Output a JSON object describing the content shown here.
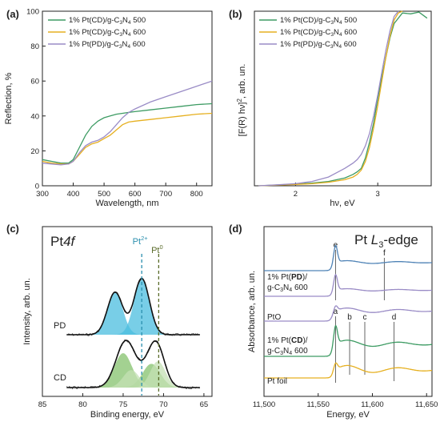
{
  "colors": {
    "green": "#3d9b63",
    "orange": "#e6b020",
    "purple": "#9a8cc6",
    "blue": "#4f83b6",
    "cyan": "#3ab7d8",
    "cyan_fill": "#4bbddf",
    "cyan_fill_light": "#a8dcec",
    "lightgreen_fill": "#84c26c",
    "lightgreen_fill_light": "#c4e0b4",
    "pt2_line": "#2b8fae",
    "pt0_line": "#5a6b2a"
  },
  "chart_data": [
    {
      "panel": "(a)",
      "type": "line",
      "xlabel": "Wavelength, nm",
      "ylabel": "Reflection, %",
      "xlim": [
        300,
        850
      ],
      "ylim": [
        0,
        100
      ],
      "xticks": [
        "300",
        "400",
        "500",
        "600",
        "700",
        "800"
      ],
      "yticks": [
        "0",
        "20",
        "40",
        "60",
        "80",
        "100"
      ],
      "legend_position": "top-left",
      "series": [
        {
          "name_parts": [
            "1% Pt(CD)/g-C",
            "3",
            "N",
            "4",
            " 500"
          ],
          "color": "green",
          "x": [
            300,
            330,
            360,
            385,
            400,
            420,
            440,
            460,
            480,
            500,
            520,
            540,
            560,
            580,
            600,
            650,
            700,
            750,
            800,
            850
          ],
          "y": [
            15,
            14,
            13,
            13,
            15,
            22,
            29,
            34,
            37,
            39,
            40,
            41,
            41.5,
            42,
            42.5,
            43.5,
            44.5,
            45.5,
            46.5,
            47
          ]
        },
        {
          "name_parts": [
            "1% Pt(CD)/g-C",
            "3",
            "N",
            "4",
            " 600"
          ],
          "color": "orange",
          "x": [
            300,
            330,
            360,
            385,
            400,
            420,
            440,
            460,
            480,
            500,
            520,
            540,
            560,
            580,
            600,
            650,
            700,
            750,
            800,
            850
          ],
          "y": [
            14,
            13,
            12.5,
            12.5,
            14,
            18,
            22,
            24,
            25,
            27,
            29,
            32,
            35,
            36.5,
            37,
            38,
            39,
            40,
            41,
            41.5
          ]
        },
        {
          "name_parts": [
            "1% Pt(PD)/g-C",
            "3",
            "N",
            "4",
            " 600"
          ],
          "color": "purple",
          "x": [
            300,
            330,
            360,
            385,
            400,
            420,
            440,
            460,
            480,
            500,
            520,
            540,
            560,
            580,
            600,
            650,
            700,
            750,
            800,
            850
          ],
          "y": [
            13,
            12.5,
            12,
            12.5,
            14,
            19,
            23,
            25,
            26,
            28,
            31,
            35,
            39,
            42,
            44,
            48,
            51,
            54,
            57,
            60
          ]
        }
      ]
    },
    {
      "panel": "(b)",
      "type": "line",
      "xlabel": "hν, eV",
      "ylabel_parts": [
        "[F(R) hν]",
        "2",
        ", arb. un."
      ],
      "xlim": [
        1.5,
        3.65
      ],
      "ylim": [
        0,
        1
      ],
      "xticks": [
        "2",
        "3"
      ],
      "legend_position": "top-left",
      "series": [
        {
          "name_parts": [
            "1% Pt(CD)/g-C",
            "3",
            "N",
            "4",
            " 500"
          ],
          "color": "green",
          "x": [
            1.55,
            1.8,
            2.0,
            2.2,
            2.4,
            2.6,
            2.7,
            2.75,
            2.8,
            2.85,
            2.9,
            2.95,
            3.0,
            3.05,
            3.1,
            3.15,
            3.2,
            3.3,
            3.4,
            3.5,
            3.6
          ],
          "y": [
            0.0,
            0.005,
            0.01,
            0.015,
            0.025,
            0.045,
            0.065,
            0.08,
            0.1,
            0.16,
            0.25,
            0.36,
            0.5,
            0.62,
            0.74,
            0.85,
            0.93,
            0.99,
            0.985,
            0.995,
            0.96
          ]
        },
        {
          "name_parts": [
            "1% Pt(CD)/g-C",
            "3",
            "N",
            "4",
            " 600"
          ],
          "color": "orange",
          "x": [
            1.55,
            1.8,
            2.0,
            2.2,
            2.4,
            2.6,
            2.7,
            2.75,
            2.8,
            2.85,
            2.9,
            2.95,
            3.0,
            3.05,
            3.1,
            3.15,
            3.2,
            3.25,
            3.3
          ],
          "y": [
            0.0,
            0.004,
            0.008,
            0.012,
            0.02,
            0.035,
            0.05,
            0.065,
            0.09,
            0.14,
            0.22,
            0.33,
            0.46,
            0.6,
            0.74,
            0.86,
            0.95,
            0.99,
            1.0
          ]
        },
        {
          "name_parts": [
            "1% Pt(PD)/g-C",
            "3",
            "N",
            "4",
            " 600"
          ],
          "color": "purple",
          "x": [
            1.55,
            1.8,
            2.0,
            2.2,
            2.4,
            2.5,
            2.6,
            2.7,
            2.75,
            2.8,
            2.85,
            2.9,
            2.95,
            3.0,
            3.05,
            3.1,
            3.15,
            3.2,
            3.25
          ],
          "y": [
            0.0,
            0.006,
            0.012,
            0.025,
            0.05,
            0.075,
            0.1,
            0.13,
            0.15,
            0.18,
            0.23,
            0.3,
            0.4,
            0.52,
            0.65,
            0.78,
            0.89,
            0.97,
            1.0
          ]
        }
      ]
    },
    {
      "panel": "(c)",
      "type": "line",
      "title_parts": [
        "Pt",
        "4f"
      ],
      "xlabel": "Binding energy, eV",
      "ylabel": "Intensity, arb. un.",
      "xlim": [
        85,
        64
      ],
      "xticks": [
        "85",
        "80",
        "75",
        "70",
        "65"
      ],
      "reference_lines": [
        {
          "label": "Pt",
          "superscript": "2+",
          "x": 72.7,
          "color": "pt2_line"
        },
        {
          "label": "Pt",
          "superscript": "0",
          "x": 70.6,
          "color": "pt0_line"
        }
      ],
      "spectra": [
        {
          "label": "PD",
          "fill": "cyan_fill",
          "fill_light": "cyan_fill_light",
          "peaks": [
            {
              "center": 76.0,
              "height": 0.68,
              "width": 0.95
            },
            {
              "center": 72.7,
              "height": 0.9,
              "width": 0.95
            }
          ]
        },
        {
          "label": "CD",
          "fill": "lightgreen_fill",
          "fill_light": "lightgreen_fill_light",
          "peaks": [
            {
              "center": 75.0,
              "height": 0.55,
              "width": 1.1
            },
            {
              "center": 71.5,
              "height": 0.38,
              "width": 1.1
            },
            {
              "center": 74.0,
              "height": 0.28,
              "width": 1.0
            },
            {
              "center": 70.7,
              "height": 0.42,
              "width": 0.95
            }
          ]
        }
      ]
    },
    {
      "panel": "(d)",
      "type": "line",
      "title_parts": [
        "Pt ",
        "L",
        "3",
        "-edge"
      ],
      "xlabel": "Energy, eV",
      "ylabel": "Absorbance, arb. un.",
      "xlim": [
        11500,
        11655
      ],
      "xticks": [
        "11,500",
        "11,550",
        "11,600",
        "11,650"
      ],
      "markers": [
        {
          "label": "e",
          "x": 11566
        },
        {
          "label": "f",
          "x": 11611
        },
        {
          "label": "a",
          "x": 11566
        },
        {
          "label": "b",
          "x": 11579
        },
        {
          "label": "c",
          "x": 11593
        },
        {
          "label": "d",
          "x": 11620
        }
      ],
      "series": [
        {
          "name_parts": [
            "1% Pt(",
            "PD",
            ")/",
            "g-C",
            "3",
            "N",
            "4",
            " 600"
          ],
          "color": "blue"
        },
        {
          "name_parts": [
            "1% Pt(",
            "PD",
            ")/",
            "g-C",
            "3",
            "N",
            "4",
            " 600"
          ],
          "color": "purple"
        },
        {
          "name_parts": [
            "PtO"
          ],
          "color": "purple"
        },
        {
          "name_parts": [
            "1% Pt(",
            "CD",
            ")/",
            "g-C",
            "3",
            "N",
            "4",
            " 600"
          ],
          "color": "green"
        },
        {
          "name_parts": [
            "Pt foil"
          ],
          "color": "orange"
        }
      ]
    }
  ],
  "panel_labels": [
    "(a)",
    "(b)",
    "(c)",
    "(d)"
  ],
  "legend_ab": [
    [
      "1% Pt(CD)/g-C",
      "3",
      "N",
      "4",
      " 500"
    ],
    [
      "1% Pt(CD)/g-C",
      "3",
      "N",
      "4",
      " 600"
    ],
    [
      "1% Pt(PD)/g-C",
      "3",
      "N",
      "4",
      " 600"
    ]
  ],
  "labels_c": {
    "pd": "PD",
    "cd": "CD",
    "pt2": "Pt",
    "pt2_sup": "2+",
    "pt0": "Pt",
    "pt0_sup": "0"
  },
  "labels_d": {
    "pd_line1_a": "1% Pt(",
    "pd_line1_b": "PD",
    "pd_line1_c": ")/",
    "pd_line2_a": "g-C",
    "pd_line2_b": "3",
    "pd_line2_c": "N",
    "pd_line2_d": "4",
    "pd_line2_e": " 600",
    "pto": "PtO",
    "cd_line1_a": "1% Pt(",
    "cd_line1_b": "CD",
    "cd_line1_c": ")/",
    "cd_line2_a": "g-C",
    "cd_line2_b": "3",
    "cd_line2_c": "N",
    "cd_line2_d": "4",
    "cd_line2_e": " 600",
    "foil": "Pt foil"
  }
}
